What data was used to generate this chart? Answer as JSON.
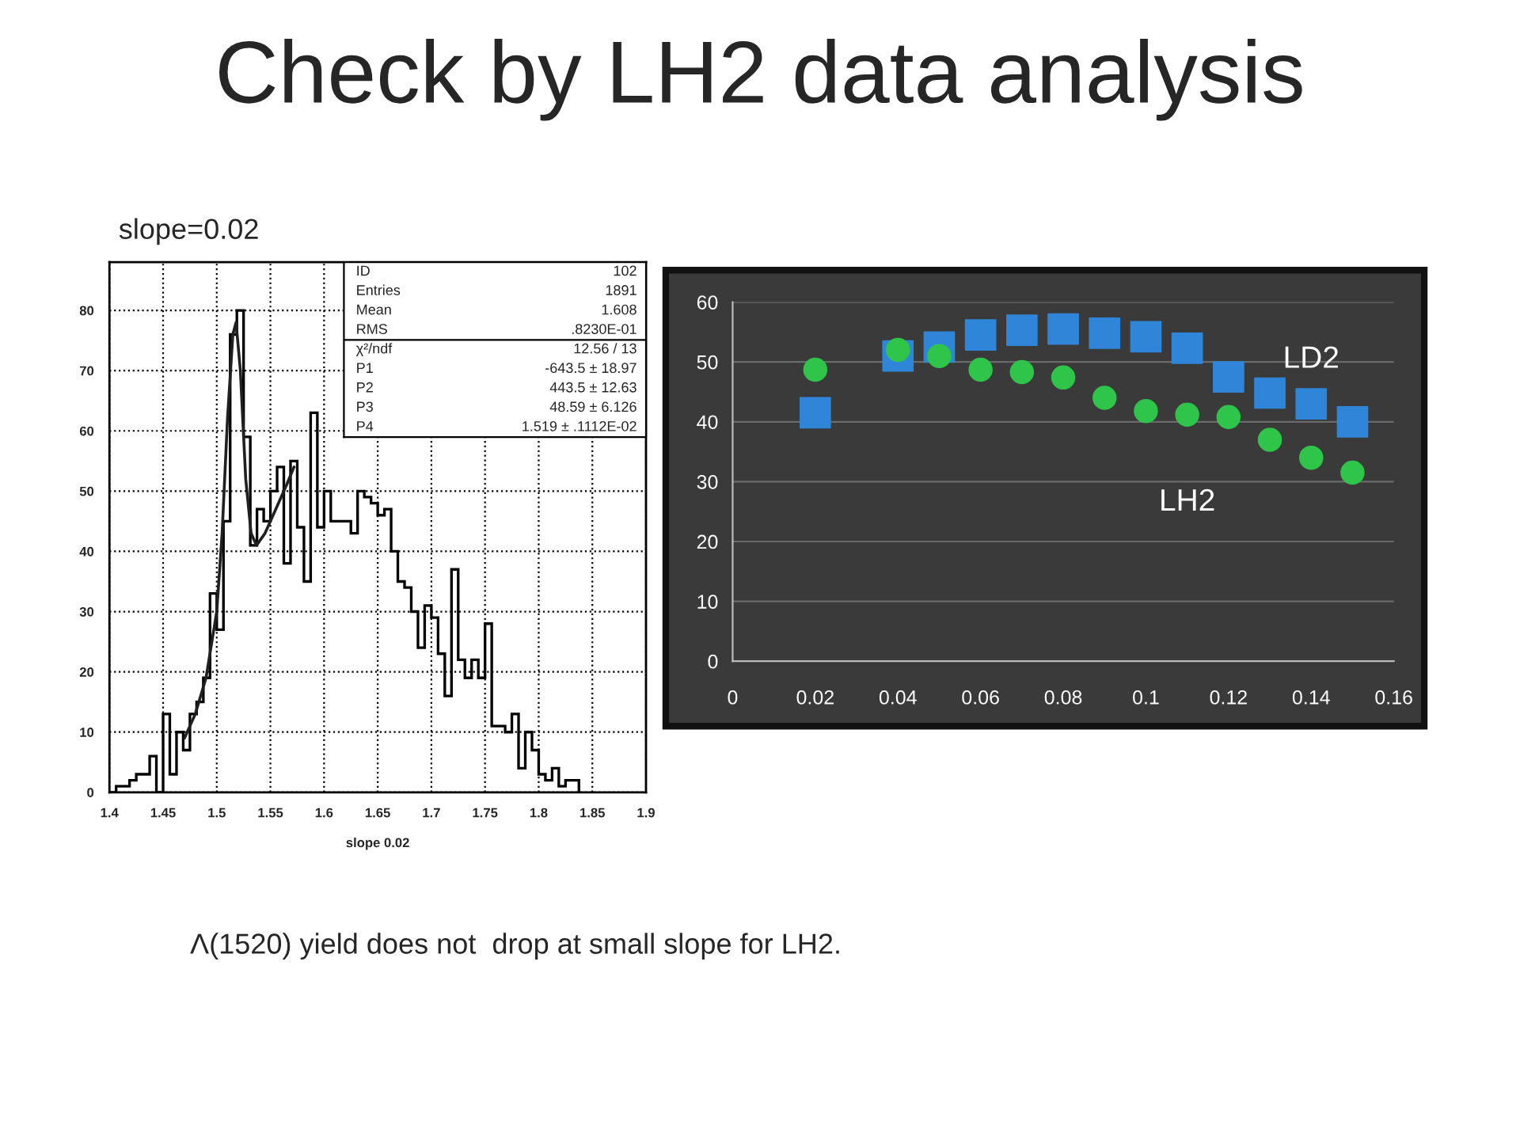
{
  "chart_data": [
    {
      "type": "histogram",
      "title": "Check by LH2 data analysis",
      "subtitle": "slope=0.02",
      "xlabel": "slope 0.02",
      "bins": [
        1.4,
        1.40625,
        1.4125,
        1.41875,
        1.425,
        1.43125,
        1.4375,
        1.44375,
        1.45,
        1.45625,
        1.4625,
        1.46875,
        1.475,
        1.48125,
        1.4875,
        1.49375,
        1.5,
        1.50625,
        1.5125,
        1.51875,
        1.525,
        1.53125,
        1.5375,
        1.54375,
        1.55,
        1.55625,
        1.5625,
        1.56875,
        1.575,
        1.58125,
        1.5875,
        1.59375,
        1.6,
        1.60625,
        1.6125,
        1.61875,
        1.625,
        1.63125,
        1.6375,
        1.64375,
        1.65,
        1.65625,
        1.6625,
        1.66875,
        1.675,
        1.68125,
        1.6875,
        1.69375,
        1.7,
        1.70625,
        1.7125,
        1.71875,
        1.725,
        1.73125,
        1.7375,
        1.74375,
        1.75,
        1.75625,
        1.7625,
        1.76875,
        1.775,
        1.78125,
        1.7875,
        1.79375,
        1.8,
        1.80625,
        1.8125,
        1.81875,
        1.825,
        1.83125,
        1.8375
      ],
      "values": [
        0,
        1,
        1,
        2,
        3,
        3,
        6,
        0,
        13,
        3,
        10,
        7,
        13,
        15,
        19,
        33,
        27,
        45,
        76,
        80,
        59,
        41,
        47,
        45,
        50,
        54,
        38,
        55,
        44,
        35,
        63,
        44,
        50,
        45,
        45,
        45,
        43,
        50,
        49,
        48,
        46,
        47,
        40,
        35,
        34,
        30,
        24,
        31,
        29,
        23,
        16,
        37,
        22,
        19,
        22,
        19,
        28,
        11,
        11,
        10,
        13,
        4,
        10,
        7,
        3,
        2,
        4,
        1,
        2,
        2
      ],
      "color": "#000000",
      "series": [
        {
          "type": "line",
          "color": "#202020",
          "x": [
            1.47,
            1.48,
            1.49,
            1.5,
            1.505,
            1.51,
            1.515,
            1.518,
            1.522,
            1.527,
            1.532,
            1.537,
            1.545,
            1.555,
            1.565,
            1.572
          ],
          "values": [
            9,
            13,
            19,
            30,
            43,
            62,
            76,
            78,
            70,
            52,
            43,
            41,
            43,
            47,
            51,
            54
          ]
        }
      ],
      "xlim": [
        1.4,
        1.9
      ],
      "xticks": [
        {
          "value": 1.4,
          "label": "1.4"
        },
        {
          "value": 1.45,
          "label": "1.45"
        },
        {
          "value": 1.5,
          "label": "1.5"
        },
        {
          "value": 1.55,
          "label": "1.55"
        },
        {
          "value": 1.6,
          "label": "1.6"
        },
        {
          "value": 1.65,
          "label": "1.65"
        },
        {
          "value": 1.7,
          "label": "1.7"
        },
        {
          "value": 1.75,
          "label": "1.75"
        },
        {
          "value": 1.8,
          "label": "1.8"
        },
        {
          "value": 1.85,
          "label": "1.85"
        },
        {
          "value": 1.9,
          "label": "1.9"
        }
      ],
      "ylim": [
        0,
        88
      ],
      "yticks": [
        0,
        10,
        20,
        30,
        40,
        50,
        60,
        70,
        80
      ],
      "grid": true,
      "annotations": [
        "ID 102",
        "Entries 1891",
        "Mean 1.608",
        "RMS .8230E-01",
        "χ²/ndf 12.56 / 13",
        "P1 -643.5 ± 18.97",
        "P2 443.5 ± 12.63",
        "P3 48.59 ± 6.126",
        "P4 1.519 ± .1112E-02"
      ]
    },
    {
      "type": "scatter",
      "x": [
        0.02,
        0.04,
        0.05,
        0.06,
        0.07,
        0.08,
        0.09,
        0.1,
        0.11,
        0.12,
        0.13,
        0.14,
        0.15
      ],
      "series": [
        {
          "name": "LD2",
          "color": "#2f86d8",
          "marker": "square",
          "values": [
            41.5,
            51,
            52.5,
            54.5,
            55.3,
            55.5,
            54.8,
            54.2,
            52.3,
            47.5,
            44.8,
            43,
            40
          ]
        },
        {
          "name": "LH2",
          "color": "#2fc44a",
          "marker": "circle",
          "values": [
            48.7,
            52,
            51,
            48.7,
            48.3,
            47.4,
            44,
            41.8,
            41.2,
            40.8,
            37,
            34,
            31.5
          ]
        }
      ],
      "xlim": [
        0,
        0.16
      ],
      "xticks": [
        0,
        0.02,
        0.04,
        0.06,
        0.08,
        0.1,
        0.12,
        0.14,
        0.16
      ],
      "ylim": [
        0,
        60
      ],
      "yticks": [
        0,
        10,
        20,
        30,
        40,
        50,
        60
      ],
      "grid": "y",
      "legend": false,
      "annotations": [
        "Λ(1520) yield does not  drop at small slope for LH2."
      ]
    }
  ]
}
